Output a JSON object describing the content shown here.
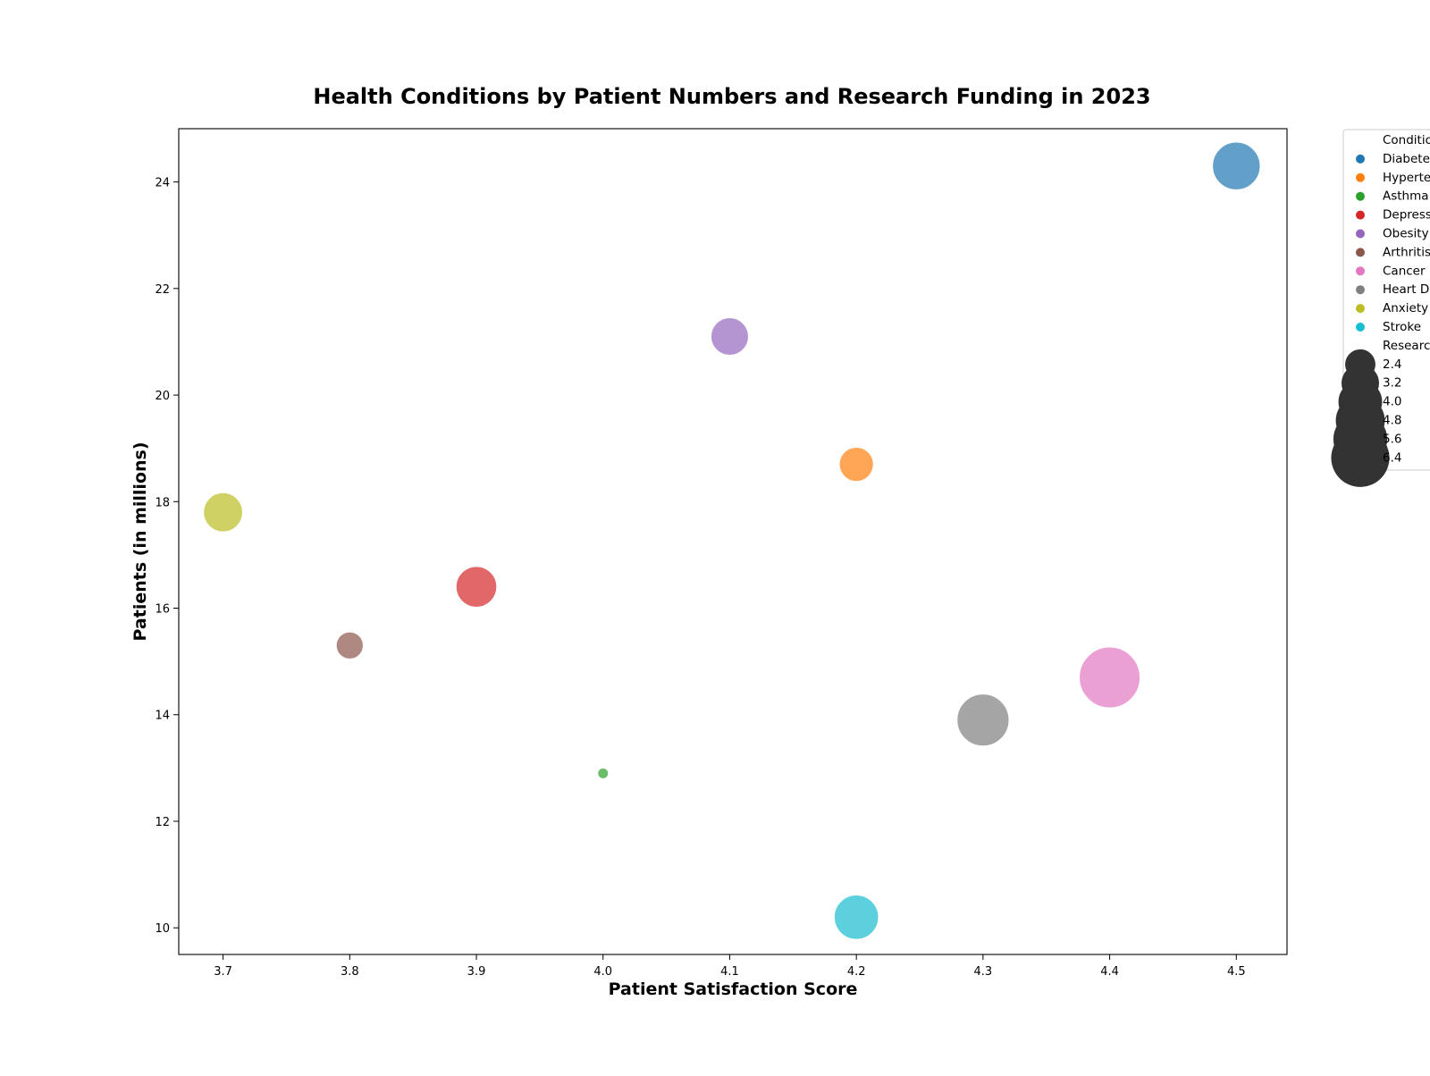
{
  "chart_data": {
    "type": "scatter",
    "title": "Health Conditions by Patient Numbers and Research Funding in 2023",
    "xlabel": "Patient Satisfaction Score",
    "ylabel": "Patients (in millions)",
    "xlim": [
      3.665,
      4.54
    ],
    "ylim": [
      9.5,
      25.0
    ],
    "xticks": [
      "3.7",
      "3.8",
      "3.9",
      "4.0",
      "4.1",
      "4.2",
      "4.3",
      "4.4",
      "4.5"
    ],
    "yticks": [
      "10",
      "12",
      "14",
      "16",
      "18",
      "20",
      "22",
      "24"
    ],
    "grid": false,
    "legend_position": "right",
    "legend": {
      "hue_title": "Conditio",
      "size_title": "Researc",
      "hue_labels": [
        "Diabete",
        "Hyperte",
        "Asthma",
        "Depress",
        "Obesity",
        "Arthritis",
        "Cancer",
        "Heart D",
        "Anxiety",
        "Stroke"
      ],
      "size_labels": [
        "2.4",
        "3.2",
        "4.0",
        "4.8",
        "5.6",
        "6.4"
      ],
      "size_values": [
        2.4,
        3.2,
        4.0,
        4.8,
        5.6,
        6.4
      ]
    },
    "size_domain": [
      1.1,
      6.9
    ],
    "series": [
      {
        "name": "Diabetes",
        "x": 4.5,
        "y": 24.3,
        "funding": 4.6,
        "color": "#1f77b4"
      },
      {
        "name": "Hypertension",
        "x": 4.2,
        "y": 18.7,
        "funding": 2.8,
        "color": "#ff7f0e"
      },
      {
        "name": "Asthma",
        "x": 4.0,
        "y": 12.9,
        "funding": 1.1,
        "color": "#2ca02c"
      },
      {
        "name": "Depression",
        "x": 3.9,
        "y": 16.4,
        "funding": 3.6,
        "color": "#d62728"
      },
      {
        "name": "Obesity",
        "x": 4.1,
        "y": 21.1,
        "funding": 3.2,
        "color": "#9467bd"
      },
      {
        "name": "Arthritis",
        "x": 3.8,
        "y": 15.3,
        "funding": 2.1,
        "color": "#8c564b"
      },
      {
        "name": "Cancer",
        "x": 4.4,
        "y": 14.7,
        "funding": 6.9,
        "color": "#e377c2"
      },
      {
        "name": "Heart Disease",
        "x": 4.3,
        "y": 13.9,
        "funding": 5.3,
        "color": "#7f7f7f"
      },
      {
        "name": "Anxiety",
        "x": 3.7,
        "y": 17.8,
        "funding": 3.4,
        "color": "#bcbd22"
      },
      {
        "name": "Stroke",
        "x": 4.2,
        "y": 10.2,
        "funding": 4.1,
        "color": "#17becf"
      }
    ],
    "size_legend_color": "#333333",
    "hue_colors": [
      "#1f77b4",
      "#ff7f0e",
      "#2ca02c",
      "#d62728",
      "#9467bd",
      "#8c564b",
      "#e377c2",
      "#7f7f7f",
      "#bcbd22",
      "#17becf"
    ]
  }
}
